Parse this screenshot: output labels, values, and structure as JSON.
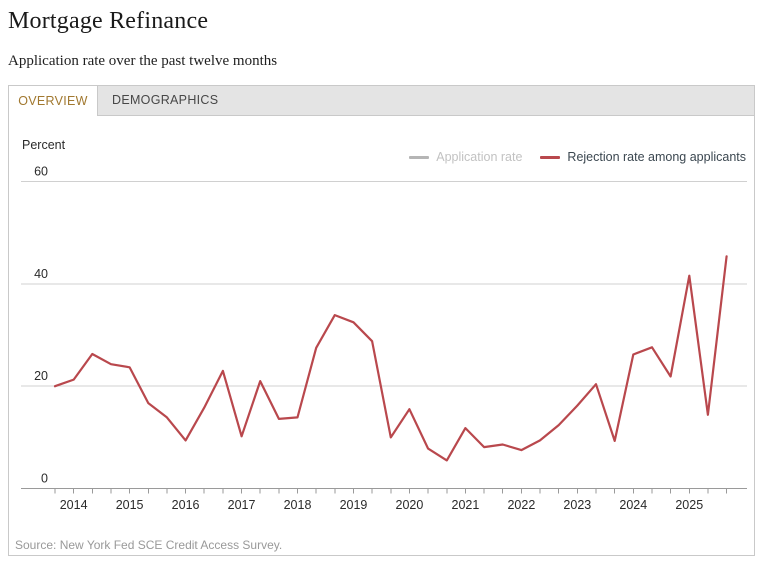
{
  "page": {
    "title": "Mortgage Refinance",
    "subtitle": "Application rate over the past twelve months",
    "source": "Source: New York Fed SCE Credit Access Survey."
  },
  "tabs": [
    {
      "label": "OVERVIEW",
      "active": true,
      "text_color": "#a1782f"
    },
    {
      "label": "DEMOGRAPHICS",
      "active": false,
      "text_color": "#474747"
    }
  ],
  "legend": [
    {
      "label": "Application rate",
      "color": "#b5b5b5",
      "text_color": "#c2c2c2",
      "active": false
    },
    {
      "label": "Rejection rate among applicants",
      "color": "#b9484d",
      "text_color": "#3b4750",
      "active": true
    }
  ],
  "colors": {
    "line": "#b9484d",
    "grid": "#d0d0d0",
    "axis": "#9a9a9a",
    "axis_text": "#2b2b2b"
  },
  "chart_data": {
    "type": "line",
    "unit_label": "Percent",
    "title": "Mortgage Refinance — Rejection rate among applicants",
    "ylabel": "Percent",
    "ylim": [
      0,
      60
    ],
    "yticks": [
      0,
      20,
      40,
      60
    ],
    "grid": true,
    "legend_position": "top-right",
    "points_per_year": 3,
    "first_year_tick_index": 1,
    "year_labels": [
      "2014",
      "2015",
      "2016",
      "2017",
      "2018",
      "2019",
      "2020",
      "2021",
      "2022",
      "2023",
      "2024",
      "2025"
    ],
    "x": [
      "2013.67",
      "2014.0",
      "2014.33",
      "2014.67",
      "2015.0",
      "2015.33",
      "2015.67",
      "2016.0",
      "2016.33",
      "2016.67",
      "2017.0",
      "2017.33",
      "2017.67",
      "2018.0",
      "2018.33",
      "2018.67",
      "2019.0",
      "2019.33",
      "2019.67",
      "2020.0",
      "2020.33",
      "2020.67",
      "2021.0",
      "2021.33",
      "2021.67",
      "2022.0",
      "2022.33",
      "2022.67",
      "2023.0",
      "2023.33",
      "2023.67",
      "2024.0",
      "2024.33",
      "2024.67",
      "2025.0",
      "2025.33",
      "2025.67"
    ],
    "series": [
      {
        "name": "Rejection rate among applicants",
        "color": "#b9484d",
        "values": [
          20,
          21.3,
          26.3,
          24.3,
          23.7,
          16.7,
          13.9,
          9.4,
          15.8,
          23,
          10.2,
          21,
          13.6,
          13.9,
          27.5,
          33.9,
          32.5,
          28.8,
          10,
          15.5,
          7.8,
          5.5,
          11.8,
          8.1,
          8.6,
          7.5,
          9.4,
          12.4,
          16.2,
          20.4,
          9.3,
          26.2,
          27.6,
          21.9,
          41.6,
          14.4,
          45.4
        ]
      }
    ],
    "hidden_series": [
      "Application rate"
    ]
  }
}
